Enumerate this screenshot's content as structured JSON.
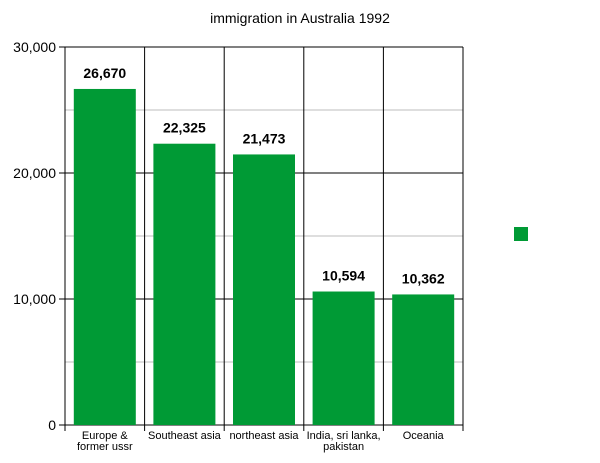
{
  "chart_data": {
    "type": "bar",
    "title": "immigration in Australia 1992",
    "categories": [
      [
        "Europe &",
        "former ussr"
      ],
      [
        "Southeast asia"
      ],
      [
        "northeast asia"
      ],
      [
        "India, sri lanka,",
        "pakistan"
      ],
      [
        "Oceania"
      ]
    ],
    "values": [
      26670,
      22325,
      21473,
      10594,
      10362
    ],
    "value_labels": [
      "26,670",
      "22,325",
      "21,473",
      "10,594",
      "10,362"
    ],
    "y_ticks": [
      0,
      10000,
      20000,
      30000
    ],
    "y_tick_labels": [
      "0",
      "10,000",
      "20,000",
      "30,000"
    ],
    "ylim": [
      0,
      30000
    ],
    "grid": true,
    "legend": {
      "placement": "right",
      "entries": [
        ""
      ]
    },
    "colors": {
      "bar": "#009a35",
      "major_grid": "#000000",
      "minor_grid": "#bdbdbd"
    }
  }
}
